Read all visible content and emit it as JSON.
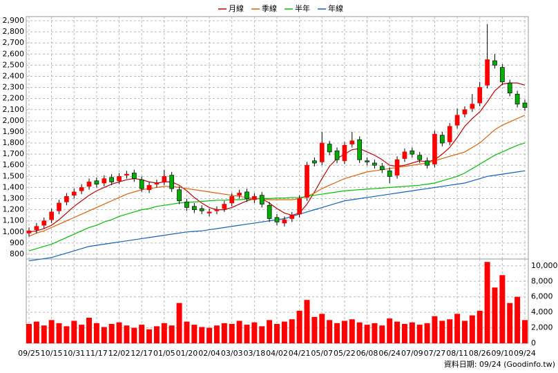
{
  "chart_data": {
    "type": "candlestick",
    "categories": [
      "09/25",
      null,
      null,
      "10/15",
      null,
      null,
      "10/31",
      null,
      null,
      "11/17",
      null,
      null,
      "12/02",
      null,
      null,
      "12/17",
      null,
      null,
      "01/05",
      null,
      null,
      "01/20",
      null,
      null,
      "02/04",
      null,
      null,
      "03/03",
      null,
      null,
      "03/18",
      null,
      null,
      "04/02",
      null,
      null,
      "04/21",
      null,
      null,
      "05/07",
      null,
      null,
      "05/22",
      null,
      null,
      "06/08",
      null,
      null,
      "06/24",
      null,
      null,
      "07/09",
      null,
      null,
      "07/27",
      null,
      null,
      "08/11",
      null,
      null,
      "08/26",
      null,
      null,
      "09/10",
      null,
      null,
      "09/24"
    ],
    "ohlc": {
      "up_color": "#ff0000",
      "down_color": "#00b000",
      "open": [
        990,
        1020,
        1060,
        1110,
        1190,
        1270,
        1330,
        1370,
        1410,
        1460,
        1440,
        1490,
        1460,
        1510,
        1530,
        1470,
        1380,
        1430,
        1450,
        1510,
        1380,
        1270,
        1230,
        1210,
        1170,
        1190,
        1210,
        1260,
        1330,
        1360,
        1290,
        1330,
        1240,
        1130,
        1080,
        1120,
        1160,
        1310,
        1640,
        1630,
        1790,
        1730,
        1640,
        1790,
        1830,
        1640,
        1620,
        1590,
        1550,
        1510,
        1660,
        1730,
        1690,
        1640,
        1610,
        1870,
        1810,
        1960,
        2060,
        2110,
        2160,
        2320,
        2540,
        2480,
        2340,
        2240,
        2160
      ],
      "high": [
        1040,
        1080,
        1130,
        1210,
        1290,
        1350,
        1390,
        1430,
        1480,
        1490,
        1510,
        1520,
        1530,
        1550,
        1560,
        1500,
        1450,
        1470,
        1560,
        1540,
        1410,
        1300,
        1260,
        1240,
        1210,
        1230,
        1280,
        1350,
        1380,
        1390,
        1350,
        1360,
        1270,
        1160,
        1140,
        1180,
        1330,
        1630,
        1670,
        1900,
        1820,
        1760,
        1810,
        1900,
        1860,
        1670,
        1650,
        1620,
        1580,
        1680,
        1750,
        1760,
        1720,
        1670,
        1910,
        1900,
        1980,
        2110,
        2130,
        2240,
        2350,
        2870,
        2600,
        2510,
        2370,
        2270,
        2190
      ],
      "low": [
        960,
        990,
        1030,
        1080,
        1160,
        1240,
        1300,
        1340,
        1380,
        1400,
        1410,
        1420,
        1430,
        1480,
        1450,
        1360,
        1350,
        1400,
        1420,
        1360,
        1250,
        1190,
        1170,
        1160,
        1140,
        1160,
        1180,
        1230,
        1300,
        1270,
        1260,
        1220,
        1090,
        1060,
        1050,
        1090,
        1130,
        1280,
        1590,
        1600,
        1690,
        1620,
        1610,
        1760,
        1620,
        1600,
        1570,
        1530,
        1440,
        1480,
        1630,
        1670,
        1620,
        1570,
        1580,
        1770,
        1780,
        1930,
        2030,
        2080,
        2130,
        2290,
        2470,
        2320,
        2220,
        2120,
        2090
      ],
      "close": [
        1010,
        1050,
        1100,
        1180,
        1260,
        1320,
        1360,
        1400,
        1450,
        1430,
        1480,
        1450,
        1500,
        1520,
        1480,
        1390,
        1420,
        1440,
        1500,
        1390,
        1280,
        1220,
        1200,
        1190,
        1180,
        1200,
        1250,
        1320,
        1350,
        1300,
        1320,
        1250,
        1120,
        1090,
        1110,
        1150,
        1300,
        1600,
        1620,
        1800,
        1720,
        1650,
        1780,
        1820,
        1650,
        1630,
        1600,
        1560,
        1500,
        1650,
        1720,
        1700,
        1650,
        1600,
        1880,
        1800,
        1950,
        2050,
        2100,
        2150,
        2300,
        2550,
        2500,
        2350,
        2250,
        2150,
        2120
      ]
    },
    "series": [
      {
        "name": "月線",
        "color": "#c00000",
        "values": [
          1000,
          1010,
          1030,
          1060,
          1110,
          1170,
          1230,
          1280,
          1330,
          1370,
          1400,
          1430,
          1450,
          1470,
          1480,
          1470,
          1450,
          1440,
          1450,
          1450,
          1420,
          1370,
          1310,
          1260,
          1220,
          1200,
          1200,
          1220,
          1250,
          1280,
          1300,
          1300,
          1260,
          1210,
          1170,
          1150,
          1170,
          1250,
          1360,
          1480,
          1590,
          1660,
          1700,
          1740,
          1750,
          1720,
          1690,
          1650,
          1600,
          1590,
          1600,
          1620,
          1640,
          1630,
          1650,
          1700,
          1760,
          1850,
          1950,
          2020,
          2080,
          2170,
          2270,
          2330,
          2340,
          2340,
          2320
        ]
      },
      {
        "name": "季線",
        "color": "#e06000",
        "values": [
          960,
          990,
          1010,
          1040,
          1070,
          1100,
          1130,
          1160,
          1190,
          1220,
          1250,
          1280,
          1310,
          1340,
          1360,
          1380,
          1390,
          1400,
          1410,
          1410,
          1400,
          1390,
          1380,
          1370,
          1360,
          1350,
          1340,
          1330,
          1320,
          1310,
          1300,
          1300,
          1290,
          1290,
          1290,
          1290,
          1300,
          1320,
          1350,
          1390,
          1420,
          1450,
          1480,
          1500,
          1520,
          1540,
          1550,
          1560,
          1570,
          1580,
          1590,
          1600,
          1610,
          1620,
          1640,
          1660,
          1680,
          1700,
          1720,
          1760,
          1800,
          1860,
          1920,
          1960,
          1990,
          2020,
          2050
        ]
      },
      {
        "name": "半年",
        "color": "#00c000",
        "values": [
          830,
          850,
          870,
          890,
          920,
          950,
          980,
          1010,
          1040,
          1060,
          1090,
          1110,
          1140,
          1160,
          1180,
          1200,
          1210,
          1230,
          1240,
          1250,
          1260,
          1265,
          1270,
          1275,
          1280,
          1285,
          1285,
          1290,
          1290,
          1295,
          1295,
          1300,
          1300,
          1305,
          1305,
          1310,
          1310,
          1320,
          1330,
          1340,
          1350,
          1360,
          1370,
          1375,
          1380,
          1385,
          1390,
          1395,
          1400,
          1405,
          1410,
          1415,
          1420,
          1430,
          1440,
          1460,
          1480,
          1500,
          1530,
          1570,
          1610,
          1650,
          1690,
          1720,
          1750,
          1780,
          1800
        ]
      },
      {
        "name": "年線",
        "color": "#1060c0",
        "values": [
          740,
          750,
          760,
          770,
          790,
          810,
          830,
          850,
          870,
          880,
          890,
          900,
          910,
          920,
          930,
          940,
          950,
          960,
          970,
          980,
          990,
          1000,
          1005,
          1010,
          1020,
          1030,
          1040,
          1050,
          1060,
          1070,
          1080,
          1090,
          1100,
          1110,
          1120,
          1140,
          1160,
          1180,
          1200,
          1220,
          1240,
          1260,
          1280,
          1290,
          1300,
          1310,
          1320,
          1330,
          1340,
          1350,
          1360,
          1370,
          1380,
          1390,
          1400,
          1410,
          1420,
          1430,
          1440,
          1460,
          1480,
          1500,
          1510,
          1520,
          1530,
          1540,
          1550
        ]
      }
    ],
    "ylim": [
      800,
      2900
    ],
    "yticks": [
      800,
      900,
      {
        "value": 1000,
        "label": "1,000"
      },
      {
        "value": 1100,
        "label": "1,100"
      },
      {
        "value": 1200,
        "label": "1,200"
      },
      {
        "value": 1300,
        "label": "1,300"
      },
      {
        "value": 1400,
        "label": "1,400"
      },
      {
        "value": 1500,
        "label": "1,500"
      },
      {
        "value": 1600,
        "label": "1,600"
      },
      {
        "value": 1700,
        "label": "1,700"
      },
      {
        "value": 1800,
        "label": "1,800"
      },
      {
        "value": 1900,
        "label": "1,900"
      },
      {
        "value": 2000,
        "label": "2,000"
      },
      {
        "value": 2100,
        "label": "2,100"
      },
      {
        "value": 2200,
        "label": "2,200"
      },
      {
        "value": 2300,
        "label": "2,300"
      },
      {
        "value": 2400,
        "label": "2,400"
      },
      {
        "value": 2500,
        "label": "2,500"
      },
      {
        "value": 2600,
        "label": "2,600"
      },
      {
        "value": 2700,
        "label": "2,700"
      },
      {
        "value": 2800,
        "label": "2,800"
      },
      {
        "value": 2900,
        "label": "2,900"
      }
    ],
    "volume": {
      "color": "#ff0000",
      "values": [
        2500,
        2800,
        2300,
        3000,
        2600,
        2200,
        2900,
        2400,
        3300,
        2600,
        2100,
        2500,
        2700,
        2300,
        2000,
        2400,
        1800,
        2200,
        2600,
        2300,
        5200,
        2800,
        2400,
        2100,
        2000,
        2300,
        2600,
        2500,
        2900,
        2400,
        2700,
        2200,
        3000,
        2500,
        2800,
        3100,
        4200,
        5600,
        3400,
        3800,
        3000,
        2600,
        2900,
        3100,
        2700,
        2400,
        2600,
        2300,
        3200,
        2800,
        2500,
        2700,
        2400,
        2600,
        3500,
        2900,
        3100,
        3800,
        2900,
        3600,
        4200,
        10500,
        7200,
        8800,
        5200,
        6000,
        3000
      ],
      "ylim": [
        0,
        10700
      ],
      "yticks": [
        0,
        {
          "value": 2000,
          "label": "2,000"
        },
        {
          "value": 4000,
          "label": "4,000"
        },
        {
          "value": 6000,
          "label": "6,000"
        },
        {
          "value": 8000,
          "label": "8,000"
        },
        {
          "value": 10000,
          "label": "10,000"
        }
      ]
    },
    "grid": true,
    "source": "資料日期: 09/24 (Goodinfo.tw)"
  }
}
